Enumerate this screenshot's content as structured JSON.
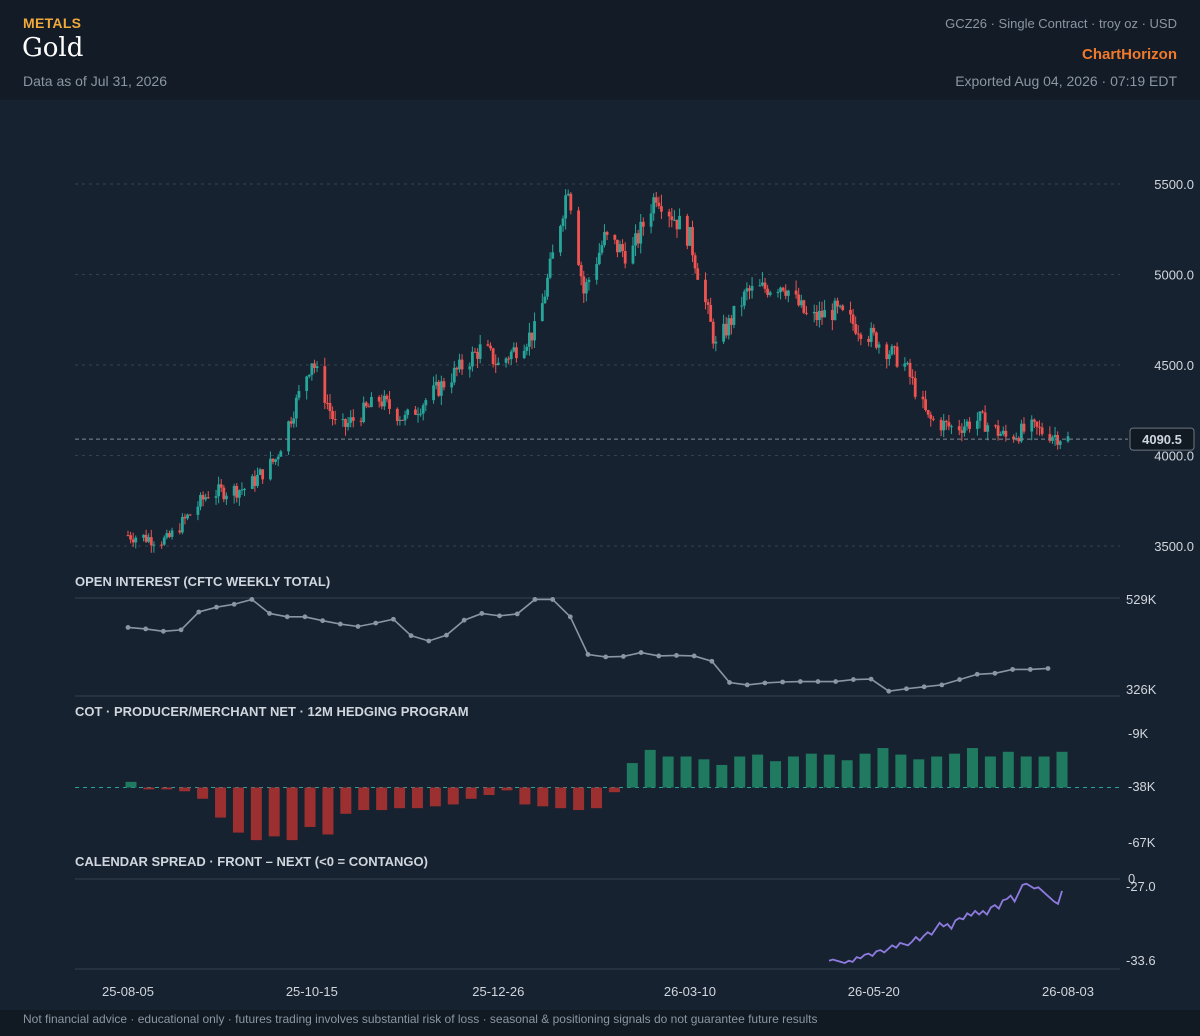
{
  "header": {
    "category": "METALS",
    "title": "Gold",
    "as_of": "Data as of Jul 31, 2026",
    "contract": "GCZ26 · Single Contract · troy oz · USD",
    "brand": "ChartHorizon",
    "exported": "Exported Aug 04, 2026 · 07:19 EDT"
  },
  "footer": "Not financial advice · educational only · futures trading involves substantial risk of loss · seasonal & positioning signals do not guarantee future results",
  "colors": {
    "up": "#26a69a",
    "down": "#ef5350",
    "cot_pos": "#1f7a60",
    "cot_neg": "#9c2f2f",
    "open_interest": "#8b96a3",
    "spread": "#8f7be0",
    "last_price_line": "#7f8a96"
  },
  "chart_data": [
    {
      "type": "candlestick",
      "title": "",
      "last_price": 4090.5,
      "last_price_label": "4090.5",
      "ylim": [
        3500,
        5800
      ],
      "y_ticks": [
        "5500.0",
        "5000.0",
        "4500.0",
        "4000.0",
        "3500.0"
      ],
      "y_tick_values": [
        5500,
        5000,
        4500,
        4000,
        3500
      ],
      "x_tick_labels": [
        "25-08-05",
        "25-10-15",
        "25-12-26",
        "26-03-10",
        "26-05-20",
        "26-08-03"
      ],
      "anchors": [
        [
          "25-08-05",
          3560
        ],
        [
          "25-08-20",
          3530
        ],
        [
          "25-09-05",
          3790
        ],
        [
          "25-09-20",
          3820
        ],
        [
          "25-10-01",
          3980
        ],
        [
          "25-10-15",
          4530
        ],
        [
          "25-10-25",
          4130
        ],
        [
          "25-11-10",
          4310
        ],
        [
          "25-11-20",
          4200
        ],
        [
          "25-12-05",
          4400
        ],
        [
          "25-12-20",
          4600
        ],
        [
          "25-12-26",
          4500
        ],
        [
          "26-01-10",
          4700
        ],
        [
          "26-01-22",
          5500
        ],
        [
          "26-01-28",
          4900
        ],
        [
          "26-02-05",
          5200
        ],
        [
          "26-02-15",
          5100
        ],
        [
          "26-02-25",
          5450
        ],
        [
          "26-03-10",
          5200
        ],
        [
          "26-03-20",
          4600
        ],
        [
          "26-04-01",
          4900
        ],
        [
          "26-04-15",
          4950
        ],
        [
          "26-04-25",
          4750
        ],
        [
          "26-05-05",
          4800
        ],
        [
          "26-05-20",
          4650
        ],
        [
          "26-06-01",
          4500
        ],
        [
          "26-06-10",
          4200
        ],
        [
          "26-06-20",
          4150
        ],
        [
          "26-06-30",
          4200
        ],
        [
          "26-07-10",
          4100
        ],
        [
          "26-07-20",
          4150
        ],
        [
          "26-08-03",
          4090.5
        ]
      ]
    },
    {
      "type": "line",
      "title": "OPEN INTEREST (CFTC WEEKLY TOTAL)",
      "y_ticks": [
        "529K",
        "326K"
      ],
      "ylim": [
        326000,
        529000
      ],
      "values": [
        468000,
        465000,
        460000,
        463000,
        500000,
        510000,
        516000,
        526000,
        497000,
        490000,
        490000,
        482000,
        475000,
        470000,
        477000,
        485000,
        451000,
        440000,
        452000,
        483000,
        497000,
        492000,
        496000,
        526000,
        526000,
        490000,
        412000,
        407000,
        408000,
        416000,
        409000,
        410000,
        409000,
        398000,
        354000,
        349000,
        353000,
        355000,
        356000,
        356000,
        356000,
        360000,
        361000,
        336000,
        341000,
        345000,
        349000,
        360000,
        371000,
        373000,
        381000,
        381000,
        383000
      ]
    },
    {
      "type": "bar",
      "title": "COT · PRODUCER/MERCHANT NET · 12M HEDGING PROGRAM",
      "y_ticks": [
        "-9K",
        "-38K",
        "-67K"
      ],
      "zero_label": "-38K",
      "baseline": -38000,
      "ylim": [
        -67000,
        -9000
      ],
      "values": [
        -35000,
        -39000,
        -39000,
        -40000,
        -44000,
        -54000,
        -62000,
        -66000,
        -64000,
        -66000,
        -59000,
        -63000,
        -52000,
        -50000,
        -50000,
        -49000,
        -49000,
        -48000,
        -47000,
        -44000,
        -42000,
        -39500,
        -47000,
        -48000,
        -49000,
        -50000,
        -49000,
        -40500,
        -25000,
        -18000,
        -21500,
        -21500,
        -23000,
        -26000,
        -21500,
        -20500,
        -24000,
        -21500,
        -20000,
        -20500,
        -23500,
        -20000,
        -17000,
        -20500,
        -23000,
        -21500,
        -20000,
        -17000,
        -21500,
        -19000,
        -21500,
        -21500,
        -19000
      ]
    },
    {
      "type": "line",
      "title": "CALENDAR SPREAD · FRONT – NEXT (<0 = CONTANGO)",
      "y_ticks": [
        "0",
        "-27.0",
        "-33.6"
      ],
      "ylim": [
        -34.2,
        -26.6
      ],
      "values": [
        -33.5,
        -33.4,
        -33.5,
        -33.6,
        -33.7,
        -33.5,
        -33.6,
        -33.2,
        -33.3,
        -33.0,
        -32.9,
        -33.1,
        -32.7,
        -32.6,
        -32.8,
        -32.5,
        -32.2,
        -32.4,
        -32.0,
        -32.1,
        -32.2,
        -31.9,
        -31.5,
        -31.8,
        -31.4,
        -31.1,
        -31.3,
        -30.8,
        -30.3,
        -30.6,
        -30.4,
        -30.8,
        -30.1,
        -29.9,
        -30.0,
        -29.5,
        -29.7,
        -29.3,
        -29.6,
        -29.3,
        -29.6,
        -29.0,
        -28.8,
        -29.1,
        -28.4,
        -28.3,
        -28.0,
        -28.5,
        -27.8,
        -27.1,
        -27.0,
        -27.2,
        -27.4,
        -27.3,
        -27.6,
        -27.9,
        -28.2,
        -28.5,
        -28.7,
        -27.6
      ]
    }
  ]
}
